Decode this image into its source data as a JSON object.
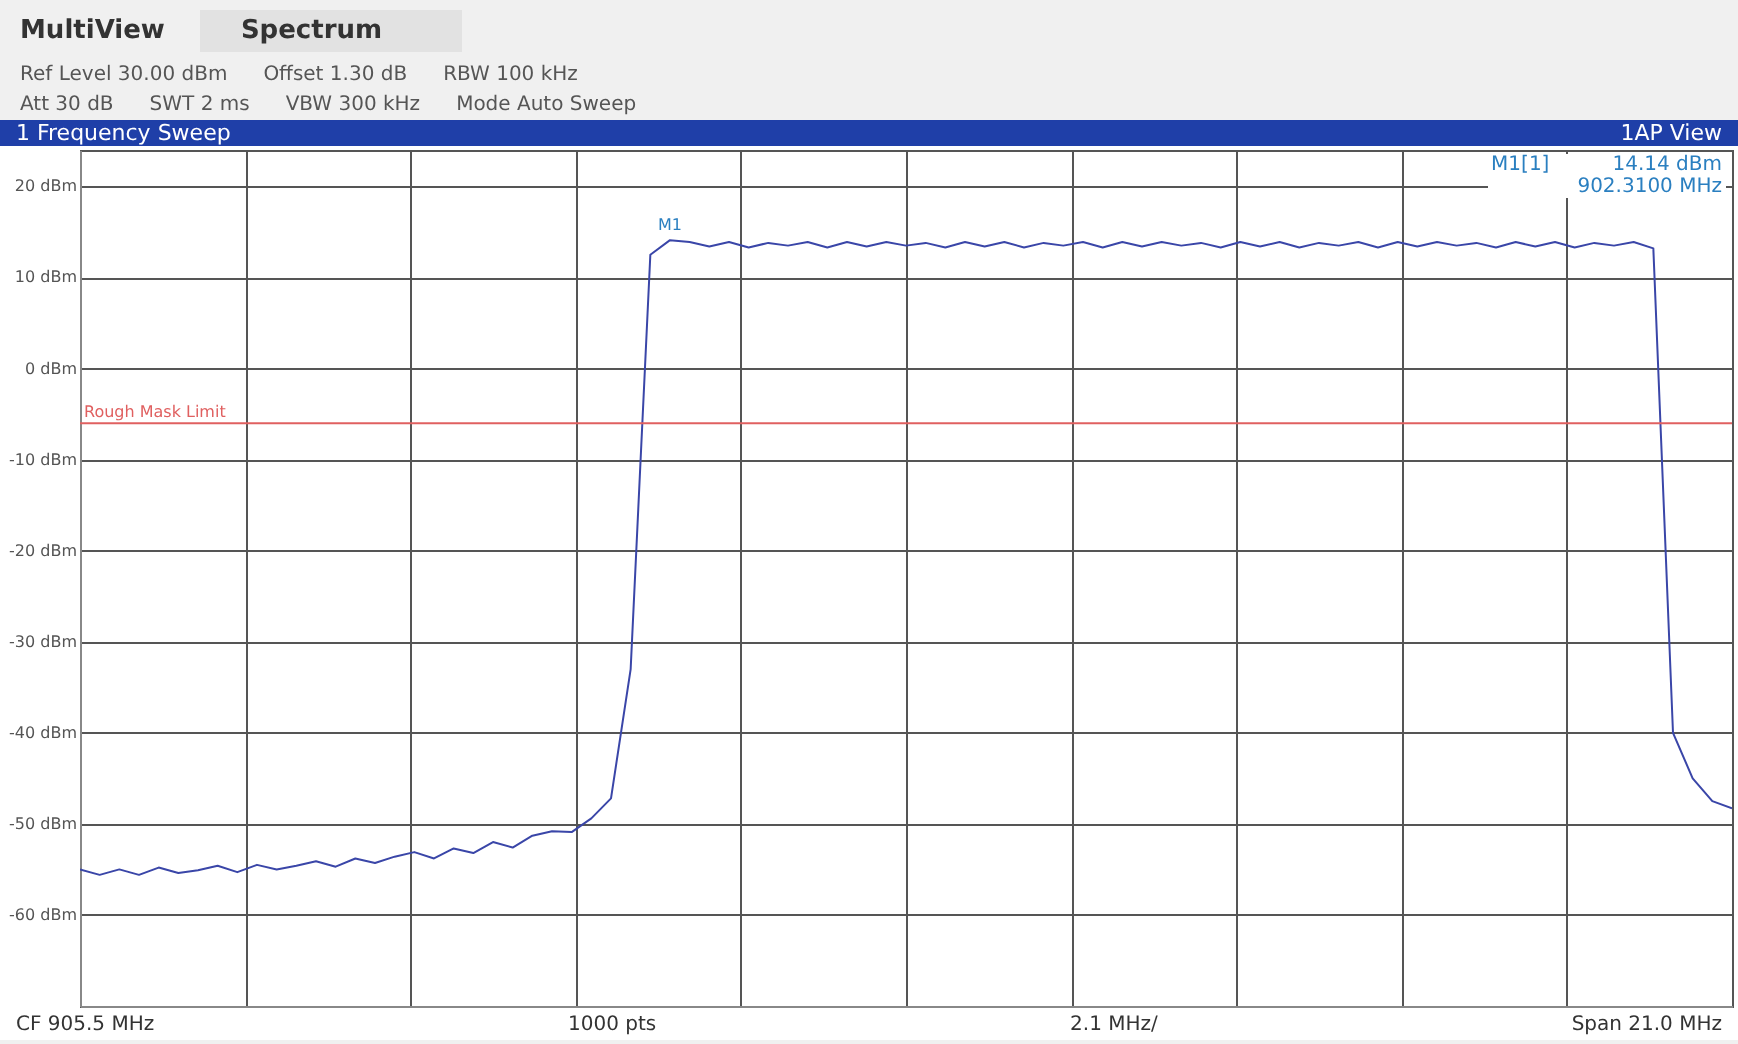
{
  "chart_data": {
    "type": "line",
    "title": "1 Frequency Sweep",
    "annotations": [
      "MultiView",
      "Spectrum",
      "Ref Level 30.00 dBm",
      "Offset 1.30 dB",
      "RBW 100 kHz",
      "Att 30 dB",
      "SWT 2 ms",
      "VBW 300 kHz",
      "Mode Auto Sweep",
      "1AP View",
      "M1[1]",
      "14.14 dBm",
      "902.3100 MHz",
      "CF 905.5 MHz",
      "1000 pts",
      "2.1 MHz/",
      "Span 21.0 MHz",
      "M1"
    ],
    "categories": [
      null,
      null,
      null,
      null,
      null,
      null,
      null,
      null,
      null,
      null,
      null,
      null,
      null,
      null,
      null,
      null,
      null,
      null,
      null,
      null,
      null,
      null,
      null,
      null,
      null,
      null,
      null,
      null,
      null,
      null,
      null,
      null,
      null,
      null,
      null,
      null,
      null,
      null,
      null,
      null,
      null,
      null,
      null,
      null,
      null,
      null,
      null,
      null,
      null,
      null,
      null,
      null,
      null,
      null,
      null,
      null,
      null,
      null,
      null,
      null,
      null,
      null,
      null,
      null,
      null,
      null,
      null,
      null,
      null,
      null,
      null,
      null,
      null,
      null,
      null,
      null,
      null,
      null,
      null,
      null,
      null,
      null,
      null,
      null,
      null
    ],
    "series": [
      {
        "color": "#3a46a8",
        "values": [
          -55,
          -55.6,
          -55,
          -55.6,
          -54.8,
          -55.4,
          -55.1,
          -54.6,
          -55.3,
          -54.5,
          -55,
          -54.6,
          -54.1,
          -54.7,
          -53.8,
          -54.3,
          -53.6,
          -53.1,
          -53.8,
          -52.7,
          -53.2,
          -52,
          -52.6,
          -51.3,
          -50.8,
          -50.9,
          -49.4,
          -47.2,
          -33,
          12.5,
          14.1,
          13.9,
          13.4,
          13.9,
          13.3,
          13.8,
          13.5,
          13.9,
          13.3,
          13.9,
          13.4,
          13.9,
          13.5,
          13.8,
          13.3,
          13.9,
          13.4,
          13.9,
          13.3,
          13.8,
          13.5,
          13.9,
          13.3,
          13.9,
          13.4,
          13.9,
          13.5,
          13.8,
          13.3,
          13.9,
          13.4,
          13.9,
          13.3,
          13.8,
          13.5,
          13.9,
          13.3,
          13.9,
          13.4,
          13.9,
          13.5,
          13.8,
          13.3,
          13.9,
          13.4,
          13.9,
          13.3,
          13.8,
          13.5,
          13.9,
          13.2,
          -40,
          -45,
          -47.5,
          -48.3
        ]
      }
    ],
    "ylim": [
      -70,
      24
    ],
    "yticks": [
      {
        "value": 20,
        "label": "20 dBm"
      },
      {
        "value": 10,
        "label": "10 dBm"
      },
      {
        "value": 0,
        "label": "0 dBm"
      },
      {
        "value": -10,
        "label": "-10 dBm"
      },
      {
        "value": -20,
        "label": "-20 dBm"
      },
      {
        "value": -30,
        "label": "-30 dBm"
      },
      {
        "value": -40,
        "label": "-40 dBm"
      },
      {
        "value": -50,
        "label": "-50 dBm"
      },
      {
        "value": -60,
        "label": "-60 dBm"
      }
    ],
    "ref_lines": [
      {
        "axis": "y",
        "value": -6,
        "label": "Rough Mask Limit",
        "color": "#e06060"
      }
    ],
    "grid": true,
    "tick_labels": "y",
    "line_style": "solid"
  }
}
